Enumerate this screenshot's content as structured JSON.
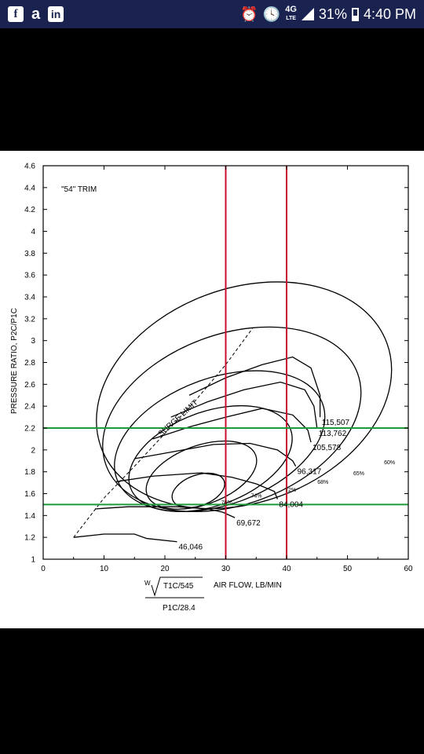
{
  "status_bar": {
    "battery": "31%",
    "time": "4:40 PM",
    "network": "4G",
    "network_sub": "LTE",
    "icons": [
      "facebook-icon",
      "amazon-icon",
      "linkedin-icon",
      "alarm-icon",
      "clock-icon",
      "network-icon",
      "signal-icon",
      "battery-icon"
    ]
  },
  "chart_data": {
    "type": "line",
    "title": "\"54\" TRIM",
    "xlabel": "AIR FLOW, LB/MIN",
    "ylabel": "PRESSURE RATIO, P2C/P1C",
    "xlim": [
      0,
      60
    ],
    "ylim": [
      1,
      4.6
    ],
    "x_ticks": [
      "0",
      "10",
      "20",
      "30",
      "40",
      "50",
      "60"
    ],
    "y_ticks": [
      "1",
      "1.2",
      "1.4",
      "1.6",
      "1.8",
      "2",
      "2.2",
      "2.4",
      "2.6",
      "2.8",
      "3",
      "3.2",
      "3.4",
      "3.6",
      "3.8",
      "4",
      "4.2",
      "4.4",
      "4.6"
    ],
    "formula": {
      "w": "W",
      "num": "T1C/545",
      "den": "P1C/28.4"
    },
    "grid": false,
    "surge_limit_label": "SURGE LIMIT",
    "surge_line": {
      "x": [
        5,
        10,
        15,
        20,
        25,
        30,
        34.5
      ],
      "y": [
        1.2,
        1.56,
        1.85,
        2.15,
        2.45,
        2.78,
        3.12
      ]
    },
    "speed_lines": [
      {
        "label": "46,046",
        "x": [
          5,
          10,
          15,
          17,
          22
        ],
        "y": [
          1.2,
          1.23,
          1.23,
          1.19,
          1.16
        ]
      },
      {
        "label": "69,672",
        "x": [
          8.5,
          14,
          22,
          27,
          29.5,
          31.5
        ],
        "y": [
          1.46,
          1.48,
          1.48,
          1.46,
          1.43,
          1.38
        ]
      },
      {
        "label": "84,004",
        "x": [
          12,
          18,
          26,
          31,
          35,
          38,
          38.5
        ],
        "y": [
          1.71,
          1.76,
          1.79,
          1.75,
          1.69,
          1.62,
          1.55
        ]
      },
      {
        "label": "96,317",
        "x": [
          15,
          22,
          28,
          34,
          38.5,
          41,
          41.5
        ],
        "y": [
          1.92,
          1.99,
          2.05,
          2.06,
          2.0,
          1.9,
          1.85
        ]
      },
      {
        "label": "105,578",
        "x": [
          18,
          24,
          30,
          36,
          41,
          43.5,
          44
        ],
        "y": [
          2.1,
          2.21,
          2.3,
          2.38,
          2.32,
          2.18,
          2.07
        ]
      },
      {
        "label": "113,762",
        "x": [
          21,
          27,
          33,
          39,
          43,
          44.5,
          45
        ],
        "y": [
          2.3,
          2.44,
          2.55,
          2.62,
          2.55,
          2.4,
          2.2
        ]
      },
      {
        "label": "115,507",
        "x": [
          24,
          30,
          36,
          41,
          44,
          45.5,
          45.5
        ],
        "y": [
          2.5,
          2.66,
          2.78,
          2.85,
          2.75,
          2.5,
          2.3
        ]
      }
    ],
    "efficiency_islands": [
      {
        "label": "76%",
        "cx": 25.5,
        "cy": 1.63,
        "rx": 4.5,
        "ry": 0.14
      },
      {
        "label": "74%",
        "cx": 26,
        "cy": 1.77,
        "rx": 9.5,
        "ry": 0.27
      },
      {
        "label": "72%",
        "cx": 27.5,
        "cy": 1.92,
        "rx": 14,
        "ry": 0.43
      },
      {
        "label": "68%",
        "cx": 29,
        "cy": 2.08,
        "rx": 18,
        "ry": 0.58
      },
      {
        "label": "65%",
        "cx": 31,
        "cy": 2.28,
        "rx": 22,
        "ry": 0.78
      },
      {
        "label": "60%",
        "cx": 33,
        "cy": 2.5,
        "rx": 25,
        "ry": 0.98
      }
    ],
    "reference_lines": {
      "vertical": {
        "color": "#c8102e",
        "x": [
          30,
          40
        ]
      },
      "horizontal": {
        "color": "#1f9a3a",
        "y": [
          2.2,
          1.5
        ]
      }
    }
  }
}
